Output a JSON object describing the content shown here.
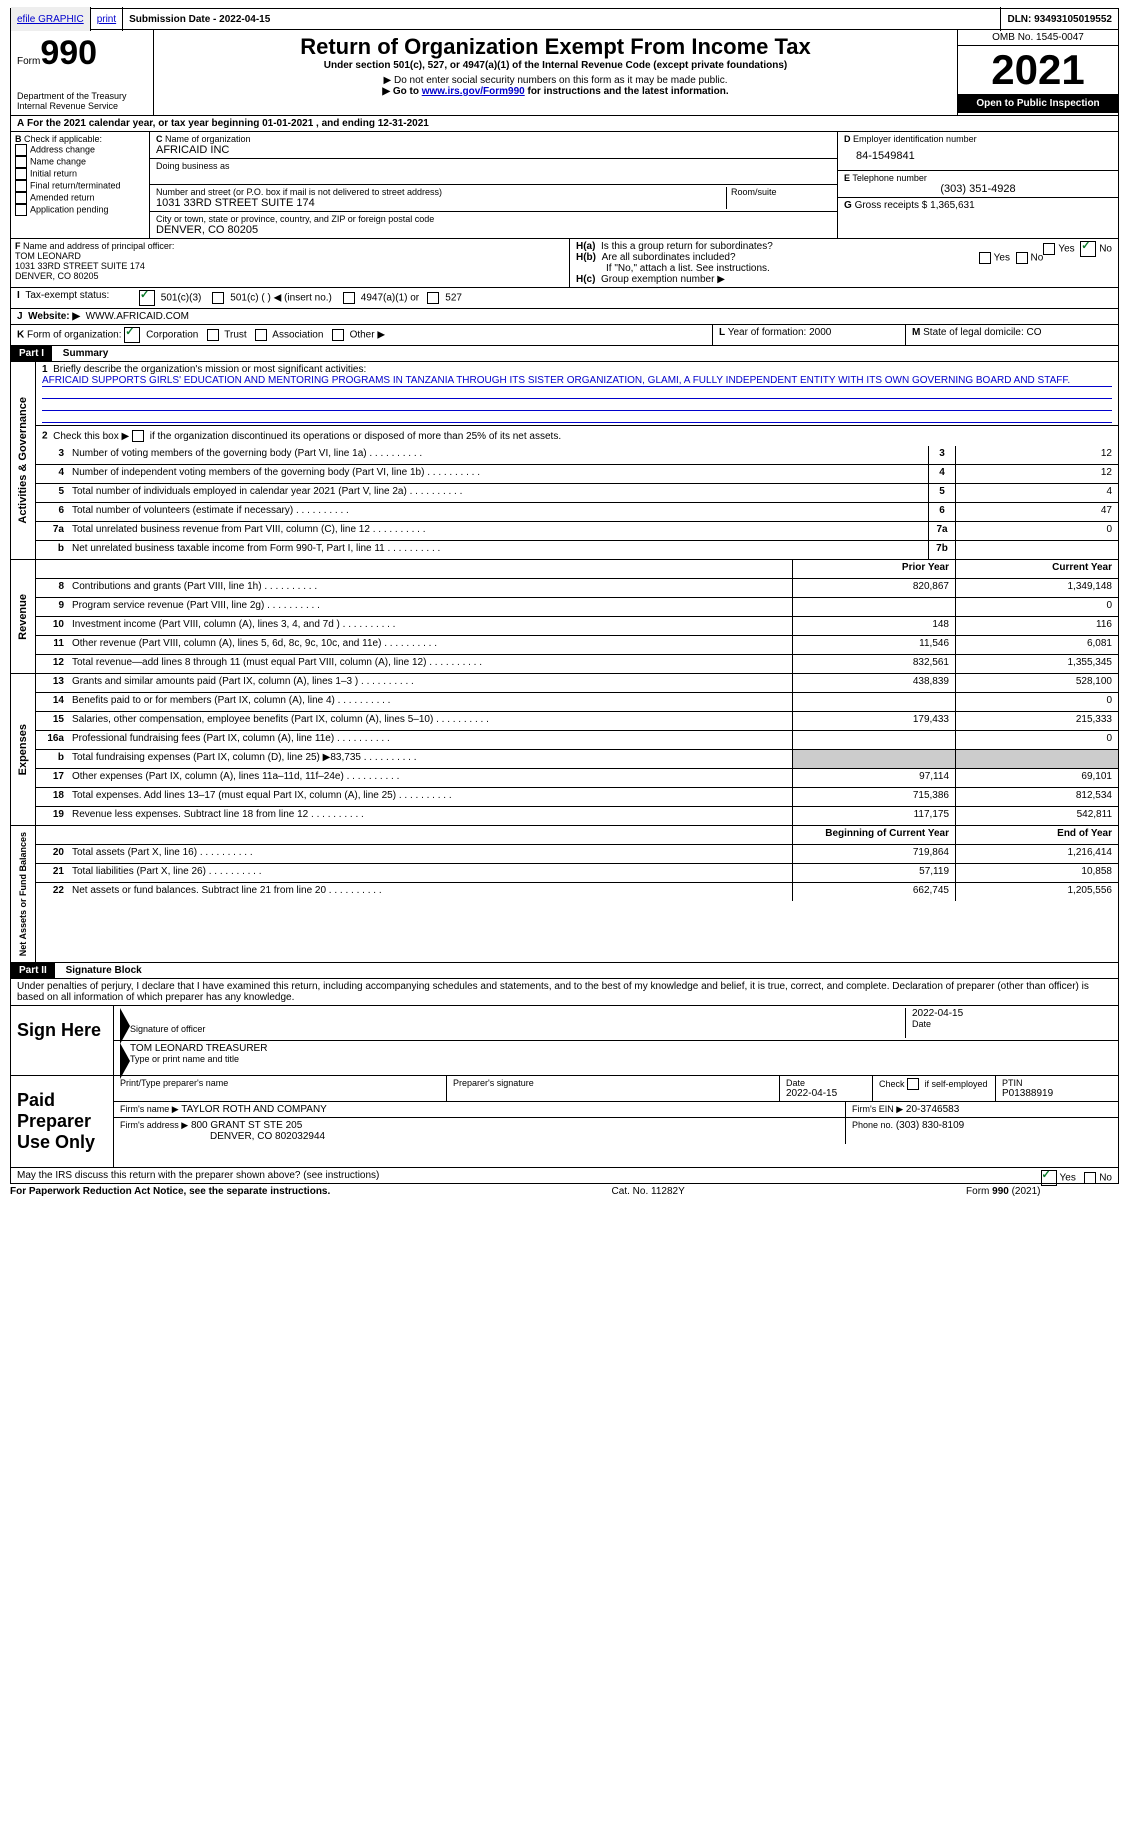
{
  "colors": {
    "link": "#0000cc",
    "black": "#000000",
    "white": "#ffffff",
    "shade": "#cccccc",
    "check": "#0a7a2a"
  },
  "topbar": {
    "efile": "efile GRAPHIC",
    "print": "print",
    "sub_label": "Submission Date - 2022-04-15",
    "dln": "DLN: 93493105019552"
  },
  "header": {
    "form_word": "Form",
    "form_num": "990",
    "dept": "Department of the Treasury",
    "irs": "Internal Revenue Service",
    "title": "Return of Organization Exempt From Income Tax",
    "sub": "Under section 501(c), 527, or 4947(a)(1) of the Internal Revenue Code (except private foundations)",
    "note1": "▶ Do not enter social security numbers on this form as it may be made public.",
    "note2_pre": "▶ Go to ",
    "note2_link": "www.irs.gov/Form990",
    "note2_post": " for instructions and the latest information.",
    "omb": "OMB No. 1545-0047",
    "year": "2021",
    "inspect": "Open to Public Inspection"
  },
  "A": {
    "text": "For the 2021 calendar year, or tax year beginning 01-01-2021    , and ending 12-31-2021"
  },
  "B": {
    "label": "Check if applicable:",
    "opts": [
      "Address change",
      "Name change",
      "Initial return",
      "Final return/terminated",
      "Amended return",
      "Application pending"
    ]
  },
  "C": {
    "name_lbl": "Name of organization",
    "name": "AFRICAID INC",
    "dba_lbl": "Doing business as",
    "addr_lbl": "Number and street (or P.O. box if mail is not delivered to street address)",
    "room_lbl": "Room/suite",
    "addr": "1031 33RD STREET SUITE 174",
    "city_lbl": "City or town, state or province, country, and ZIP or foreign postal code",
    "city": "DENVER, CO  80205"
  },
  "D": {
    "lbl": "Employer identification number",
    "val": "84-1549841"
  },
  "E": {
    "lbl": "Telephone number",
    "val": "(303) 351-4928"
  },
  "G": {
    "lbl": "Gross receipts $",
    "val": "1,365,631"
  },
  "F": {
    "lbl": "Name and address of principal officer:",
    "name": "TOM LEONARD",
    "addr1": "1031 33RD STREET SUITE 174",
    "addr2": "DENVER, CO  80205"
  },
  "H": {
    "a": "Is this a group return for subordinates?",
    "b": "Are all subordinates included?",
    "b_note": "If \"No,\" attach a list. See instructions.",
    "c": "Group exemption number ▶",
    "yes": "Yes",
    "no": "No"
  },
  "I": {
    "lbl": "Tax-exempt status:",
    "o1": "501(c)(3)",
    "o2": "501(c) (  ) ◀ (insert no.)",
    "o3": "4947(a)(1) or",
    "o4": "527"
  },
  "J": {
    "lbl": "Website: ▶",
    "val": "WWW.AFRICAID.COM"
  },
  "K": {
    "lbl": "Form of organization:",
    "o1": "Corporation",
    "o2": "Trust",
    "o3": "Association",
    "o4": "Other ▶"
  },
  "L": {
    "lbl": "Year of formation:",
    "val": "2000"
  },
  "M": {
    "lbl": "State of legal domicile:",
    "val": "CO"
  },
  "part1": {
    "hdr": "Part I",
    "title": "Summary",
    "q1_lbl": "Briefly describe the organization's mission or most significant activities:",
    "q1_val": "AFRICAID SUPPORTS GIRLS' EDUCATION AND MENTORING PROGRAMS IN TANZANIA THROUGH ITS SISTER ORGANIZATION, GLAMI, A FULLY INDEPENDENT ENTITY WITH ITS OWN GOVERNING BOARD AND STAFF.",
    "q2": "Check this box ▶      if the organization discontinued its operations or disposed of more than 25% of its net assets.",
    "lines_gov": [
      {
        "n": "3",
        "d": "Number of voting members of the governing body (Part VI, line 1a)",
        "box": "3",
        "v": "12"
      },
      {
        "n": "4",
        "d": "Number of independent voting members of the governing body (Part VI, line 1b)",
        "box": "4",
        "v": "12"
      },
      {
        "n": "5",
        "d": "Total number of individuals employed in calendar year 2021 (Part V, line 2a)",
        "box": "5",
        "v": "4"
      },
      {
        "n": "6",
        "d": "Total number of volunteers (estimate if necessary)",
        "box": "6",
        "v": "47"
      },
      {
        "n": "7a",
        "d": "Total unrelated business revenue from Part VIII, column (C), line 12",
        "box": "7a",
        "v": "0"
      },
      {
        "n": "b",
        "d": "Net unrelated business taxable income from Form 990-T, Part I, line 11",
        "box": "7b",
        "v": ""
      }
    ],
    "col_prior": "Prior Year",
    "col_curr": "Current Year",
    "rev": [
      {
        "n": "8",
        "d": "Contributions and grants (Part VIII, line 1h)",
        "p": "820,867",
        "c": "1,349,148"
      },
      {
        "n": "9",
        "d": "Program service revenue (Part VIII, line 2g)",
        "p": "",
        "c": "0"
      },
      {
        "n": "10",
        "d": "Investment income (Part VIII, column (A), lines 3, 4, and 7d )",
        "p": "148",
        "c": "116"
      },
      {
        "n": "11",
        "d": "Other revenue (Part VIII, column (A), lines 5, 6d, 8c, 9c, 10c, and 11e)",
        "p": "11,546",
        "c": "6,081"
      },
      {
        "n": "12",
        "d": "Total revenue—add lines 8 through 11 (must equal Part VIII, column (A), line 12)",
        "p": "832,561",
        "c": "1,355,345"
      }
    ],
    "exp": [
      {
        "n": "13",
        "d": "Grants and similar amounts paid (Part IX, column (A), lines 1–3 )",
        "p": "438,839",
        "c": "528,100"
      },
      {
        "n": "14",
        "d": "Benefits paid to or for members (Part IX, column (A), line 4)",
        "p": "",
        "c": "0"
      },
      {
        "n": "15",
        "d": "Salaries, other compensation, employee benefits (Part IX, column (A), lines 5–10)",
        "p": "179,433",
        "c": "215,333"
      },
      {
        "n": "16a",
        "d": "Professional fundraising fees (Part IX, column (A), line 11e)",
        "p": "",
        "c": "0"
      },
      {
        "n": "b",
        "d": "Total fundraising expenses (Part IX, column (D), line 25) ▶83,735",
        "p": "shade",
        "c": "shade"
      },
      {
        "n": "17",
        "d": "Other expenses (Part IX, column (A), lines 11a–11d, 11f–24e)",
        "p": "97,114",
        "c": "69,101"
      },
      {
        "n": "18",
        "d": "Total expenses. Add lines 13–17 (must equal Part IX, column (A), line 25)",
        "p": "715,386",
        "c": "812,534"
      },
      {
        "n": "19",
        "d": "Revenue less expenses. Subtract line 18 from line 12",
        "p": "117,175",
        "c": "542,811"
      }
    ],
    "col_begin": "Beginning of Current Year",
    "col_end": "End of Year",
    "net": [
      {
        "n": "20",
        "d": "Total assets (Part X, line 16)",
        "p": "719,864",
        "c": "1,216,414"
      },
      {
        "n": "21",
        "d": "Total liabilities (Part X, line 26)",
        "p": "57,119",
        "c": "10,858"
      },
      {
        "n": "22",
        "d": "Net assets or fund balances. Subtract line 21 from line 20",
        "p": "662,745",
        "c": "1,205,556"
      }
    ]
  },
  "vlabels": {
    "gov": "Activities & Governance",
    "rev": "Revenue",
    "exp": "Expenses",
    "net": "Net Assets or Fund Balances"
  },
  "part2": {
    "hdr": "Part II",
    "title": "Signature Block",
    "decl": "Under penalties of perjury, I declare that I have examined this return, including accompanying schedules and statements, and to the best of my knowledge and belief, it is true, correct, and complete. Declaration of preparer (other than officer) is based on all information of which preparer has any knowledge."
  },
  "sign": {
    "here": "Sign Here",
    "sig_lbl": "Signature of officer",
    "date_lbl": "Date",
    "date": "2022-04-15",
    "name": "TOM LEONARD  TREASURER",
    "name_lbl": "Type or print name and title"
  },
  "prep": {
    "hdr": "Paid Preparer Use Only",
    "name_lbl": "Print/Type preparer's name",
    "sig_lbl": "Preparer's signature",
    "date_lbl": "Date",
    "date": "2022-04-15",
    "self_lbl": "Check        if self-employed",
    "ptin_lbl": "PTIN",
    "ptin": "P01388919",
    "firm_lbl": "Firm's name    ▶",
    "firm": "TAYLOR ROTH AND COMPANY",
    "ein_lbl": "Firm's EIN ▶",
    "ein": "20-3746583",
    "addr_lbl": "Firm's address ▶",
    "addr1": "800 GRANT ST STE 205",
    "addr2": "DENVER, CO  802032944",
    "phone_lbl": "Phone no.",
    "phone": "(303) 830-8109"
  },
  "discuss": "May the IRS discuss this return with the preparer shown above? (see instructions)",
  "footer": {
    "left": "For Paperwork Reduction Act Notice, see the separate instructions.",
    "mid": "Cat. No. 11282Y",
    "right": "Form 990 (2021)"
  }
}
